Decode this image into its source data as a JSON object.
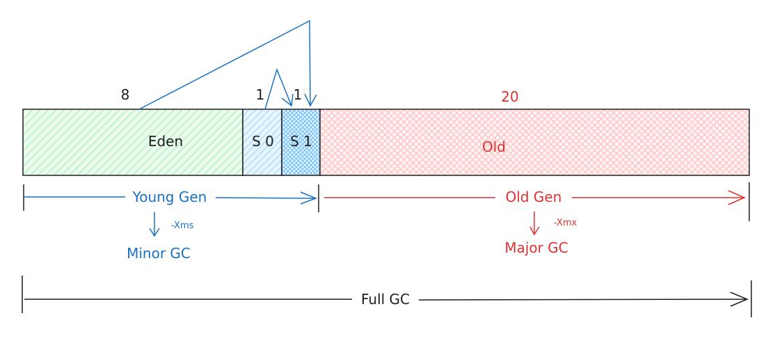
{
  "colors": {
    "stroke": "#1e1e1e",
    "blue": "#1971c2",
    "red": "#e03131",
    "eden_fill": "#b2f2bb",
    "survivor_fill": "#a5d8ff",
    "old_fill": "#ffc9c9"
  },
  "ratios": {
    "eden": "8",
    "s0": "1",
    "s1": "1",
    "old": "20"
  },
  "regions": {
    "eden": "Eden",
    "s0": "S 0",
    "s1": "S 1",
    "old": "Old"
  },
  "young_gen": {
    "label": "Young Gen",
    "flag": "-Xms",
    "gc": "Minor GC"
  },
  "old_gen": {
    "label": "Old Gen",
    "flag": "-Xmx",
    "gc": "Major GC"
  },
  "full_gc": {
    "label": "Full GC"
  }
}
